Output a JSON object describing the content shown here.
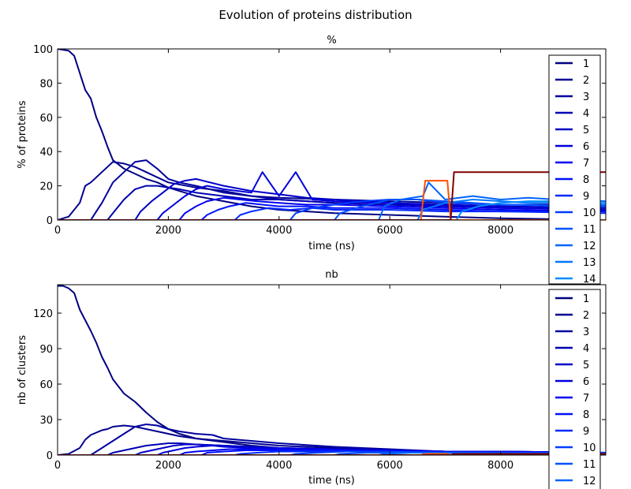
{
  "figure": {
    "title": "Evolution of proteins distribution"
  },
  "colors": {
    "series": [
      "#000080",
      "#00008f",
      "#00009f",
      "#0000b2",
      "#0000c8",
      "#0000dd",
      "#0000f1",
      "#0010ff",
      "#0028ff",
      "#003cff",
      "#0050ff",
      "#0064ff",
      "#0078ff",
      "#008cff",
      "#00a0ff",
      "#00b4ff",
      "#00c8ff",
      "#00dcfe"
    ],
    "orange": "#ff5000",
    "darkred": "#800000"
  },
  "chart_data": [
    {
      "type": "line",
      "title": "%",
      "xlabel": "time (ns)",
      "ylabel": "% of proteins",
      "xlim": [
        0,
        9900
      ],
      "ylim": [
        0,
        100
      ],
      "xticks": [
        "0",
        "2000",
        "4000",
        "6000",
        "8000"
      ],
      "yticks": [
        "0",
        "20",
        "40",
        "60",
        "80",
        "100"
      ],
      "legend": {
        "position": "right",
        "entries": [
          "1",
          "2",
          "3",
          "4",
          "5",
          "6",
          "7",
          "8",
          "9",
          "10",
          "11",
          "12",
          "13",
          "14"
        ]
      },
      "series": [
        {
          "name": "1",
          "x": [
            0,
            200,
            300,
            400,
            500,
            600,
            700,
            800,
            900,
            1000,
            1200,
            1400,
            1600,
            1800,
            2000,
            2500,
            3000,
            3500,
            4000,
            5000,
            6000,
            7000,
            8000,
            9900
          ],
          "values": [
            100,
            99,
            96,
            86,
            76,
            71,
            60,
            52,
            43,
            35,
            30,
            27,
            24,
            22,
            19,
            14,
            11,
            8,
            6,
            4,
            3,
            2,
            1,
            0
          ]
        },
        {
          "name": "2",
          "x": [
            0,
            200,
            400,
            500,
            600,
            700,
            800,
            900,
            1000,
            1200,
            1400,
            1600,
            1800,
            2000,
            2500,
            3000,
            3500,
            4000,
            5000,
            6000,
            7000,
            8000,
            9900
          ],
          "values": [
            0,
            2,
            10,
            20,
            22,
            25,
            28,
            31,
            34,
            33,
            31,
            28,
            25,
            22,
            19,
            17,
            14,
            13,
            12,
            11,
            10,
            9,
            9
          ]
        },
        {
          "name": "3",
          "x": [
            0,
            600,
            700,
            800,
            900,
            1000,
            1200,
            1400,
            1600,
            1800,
            2000,
            2200,
            2500,
            3000,
            3500,
            4000,
            4500,
            5000,
            6000,
            7000,
            8000,
            9900
          ],
          "values": [
            0,
            0,
            5,
            10,
            16,
            22,
            28,
            34,
            35,
            30,
            24,
            22,
            20,
            16,
            14,
            12,
            11,
            10,
            9,
            8,
            7,
            6
          ]
        },
        {
          "name": "4",
          "x": [
            0,
            900,
            1000,
            1100,
            1200,
            1300,
            1400,
            1600,
            1800,
            2000,
            2200,
            2500,
            3000,
            3500,
            4000,
            4500,
            5000,
            6000,
            7000,
            8000,
            9900
          ],
          "values": [
            0,
            0,
            4,
            8,
            12,
            15,
            18,
            20,
            20,
            19,
            18,
            16,
            14,
            12,
            12,
            11,
            10,
            9,
            8,
            8,
            7
          ]
        },
        {
          "name": "5",
          "x": [
            0,
            1400,
            1500,
            1700,
            1900,
            2100,
            2300,
            2500,
            3000,
            3500,
            4000,
            4500,
            5000,
            6000,
            7000,
            8000,
            9900
          ],
          "values": [
            0,
            0,
            5,
            11,
            16,
            21,
            23,
            24,
            20,
            17,
            15,
            13,
            12,
            10,
            9,
            8,
            7
          ]
        },
        {
          "name": "6",
          "x": [
            0,
            1800,
            1900,
            2100,
            2300,
            2500,
            2700,
            3000,
            3500,
            3700,
            4000,
            4300,
            4600,
            5000,
            6000,
            7000,
            8000,
            9900
          ],
          "values": [
            0,
            0,
            4,
            9,
            14,
            18,
            20,
            18,
            16,
            28,
            14,
            28,
            12,
            11,
            10,
            8,
            7,
            6
          ]
        },
        {
          "name": "7",
          "x": [
            0,
            2200,
            2300,
            2500,
            2700,
            3000,
            3300,
            3600,
            4000,
            4500,
            5000,
            6000,
            7000,
            8000,
            9900
          ],
          "values": [
            0,
            0,
            4,
            8,
            11,
            13,
            12,
            11,
            10,
            9,
            9,
            8,
            7,
            6,
            5
          ]
        },
        {
          "name": "8",
          "x": [
            0,
            2600,
            2700,
            2900,
            3100,
            3400,
            3700,
            4000,
            4500,
            5000,
            6000,
            7000,
            8000,
            9900
          ],
          "values": [
            0,
            0,
            3,
            6,
            8,
            10,
            9,
            8,
            8,
            7,
            7,
            6,
            5,
            5
          ]
        },
        {
          "name": "9",
          "x": [
            0,
            3200,
            3300,
            3500,
            3800,
            4200,
            4600,
            5000,
            6000,
            7000,
            8000,
            9900
          ],
          "values": [
            0,
            0,
            3,
            5,
            7,
            6,
            7,
            6,
            6,
            5,
            5,
            4
          ]
        },
        {
          "name": "10",
          "x": [
            0,
            4200,
            4300,
            4600,
            5000,
            5500,
            6000,
            6500,
            7000,
            8000,
            9900
          ],
          "values": [
            0,
            0,
            4,
            7,
            9,
            11,
            12,
            12,
            10,
            9,
            8
          ]
        },
        {
          "name": "11",
          "x": [
            0,
            5000,
            5100,
            5500,
            6000,
            6500,
            7000,
            7500,
            8000,
            8500,
            9000,
            9900
          ],
          "values": [
            0,
            0,
            4,
            8,
            12,
            12,
            11,
            10,
            9,
            9,
            8,
            8
          ]
        },
        {
          "name": "12",
          "x": [
            0,
            5800,
            5900,
            6200,
            6600,
            6700,
            7000,
            7500,
            8000,
            8500,
            9000,
            9900
          ],
          "values": [
            0,
            0,
            8,
            12,
            14,
            22,
            12,
            14,
            12,
            13,
            12,
            11
          ]
        },
        {
          "name": "13",
          "x": [
            0,
            6500,
            6600,
            7000,
            7500,
            8000,
            8500,
            9000,
            9900
          ],
          "values": [
            0,
            0,
            6,
            10,
            12,
            11,
            10,
            10,
            9
          ]
        },
        {
          "name": "14",
          "x": [
            0,
            7200,
            7300,
            7600,
            8000,
            8500,
            9000,
            9500,
            9900
          ],
          "values": [
            0,
            0,
            5,
            8,
            10,
            11,
            11,
            10,
            10
          ]
        },
        {
          "name": "",
          "x": [
            0,
            6560,
            6640,
            7040,
            7100,
            9900
          ],
          "values": [
            0,
            0,
            23,
            23,
            0,
            0
          ]
        },
        {
          "name": "",
          "x": [
            0,
            7100,
            7160,
            9900
          ],
          "values": [
            0,
            0,
            28,
            28
          ]
        }
      ]
    },
    {
      "type": "line",
      "title": "nb",
      "xlabel": "time (ns)",
      "ylabel": "nb of clusters",
      "xlim": [
        0,
        9900
      ],
      "ylim": [
        0,
        144
      ],
      "xticks": [
        "0",
        "2000",
        "4000",
        "6000",
        "8000"
      ],
      "yticks": [
        "0",
        "30",
        "60",
        "90",
        "120"
      ],
      "legend": {
        "position": "right",
        "entries": [
          "1",
          "2",
          "3",
          "4",
          "5",
          "6",
          "7",
          "8",
          "9",
          "10",
          "11",
          "12"
        ]
      },
      "series": [
        {
          "name": "1",
          "x": [
            0,
            100,
            200,
            300,
            400,
            500,
            600,
            700,
            800,
            900,
            1000,
            1200,
            1400,
            1600,
            1800,
            2000,
            2200,
            2500,
            3000,
            3500,
            4000,
            5000,
            6000,
            7000,
            8000,
            9900
          ],
          "values": [
            143,
            143,
            141,
            137,
            123,
            114,
            105,
            95,
            83,
            74,
            64,
            52,
            45,
            36,
            28,
            22,
            18,
            14,
            11,
            8,
            6,
            4,
            3,
            2,
            1,
            1
          ]
        },
        {
          "name": "2",
          "x": [
            0,
            200,
            400,
            500,
            600,
            700,
            800,
            900,
            1000,
            1200,
            1400,
            1600,
            1800,
            2000,
            2200,
            2500,
            3000,
            3500,
            4000,
            5000,
            6000,
            7000,
            8000,
            9900
          ],
          "values": [
            0,
            1,
            6,
            13,
            17,
            19,
            21,
            22,
            24,
            25,
            24,
            22,
            20,
            18,
            16,
            14,
            12,
            10,
            8,
            6,
            4,
            3,
            2,
            2
          ]
        },
        {
          "name": "3",
          "x": [
            0,
            600,
            700,
            800,
            900,
            1000,
            1200,
            1400,
            1600,
            1800,
            2000,
            2200,
            2500,
            2800,
            3000,
            3500,
            4000,
            5000,
            6000,
            7000,
            8000,
            9900
          ],
          "values": [
            0,
            0,
            3,
            6,
            9,
            12,
            18,
            24,
            26,
            25,
            22,
            20,
            18,
            17,
            14,
            12,
            10,
            7,
            5,
            3,
            2,
            2
          ]
        },
        {
          "name": "4",
          "x": [
            0,
            900,
            1000,
            1200,
            1400,
            1600,
            1800,
            2000,
            2200,
            2500,
            3000,
            3500,
            4000,
            5000,
            6000,
            7000,
            8000,
            9900
          ],
          "values": [
            0,
            0,
            2,
            4,
            6,
            8,
            9,
            10,
            10,
            9,
            8,
            7,
            6,
            5,
            4,
            3,
            3,
            2
          ]
        },
        {
          "name": "5",
          "x": [
            0,
            1400,
            1500,
            1700,
            1900,
            2100,
            2300,
            2500,
            3000,
            3500,
            4000,
            5000,
            6000,
            7000,
            8000,
            9900
          ],
          "values": [
            0,
            0,
            2,
            4,
            6,
            8,
            9,
            9,
            8,
            7,
            6,
            5,
            4,
            3,
            3,
            2
          ]
        },
        {
          "name": "6",
          "x": [
            0,
            1800,
            1900,
            2100,
            2300,
            2500,
            2800,
            3000,
            3500,
            4000,
            5000,
            6000,
            7000,
            8000,
            9900
          ],
          "values": [
            0,
            0,
            2,
            4,
            6,
            7,
            8,
            7,
            6,
            6,
            5,
            4,
            3,
            3,
            2
          ]
        },
        {
          "name": "7",
          "x": [
            0,
            2200,
            2300,
            2500,
            2800,
            3100,
            3500,
            4000,
            5000,
            6000,
            7000,
            8000,
            9900
          ],
          "values": [
            0,
            0,
            2,
            3,
            4,
            5,
            5,
            5,
            4,
            4,
            3,
            3,
            2
          ]
        },
        {
          "name": "8",
          "x": [
            0,
            2600,
            2700,
            3000,
            3400,
            4000,
            5000,
            6000,
            7000,
            8000,
            9900
          ],
          "values": [
            0,
            0,
            2,
            3,
            4,
            4,
            4,
            3,
            3,
            2,
            2
          ]
        },
        {
          "name": "9",
          "x": [
            0,
            3200,
            3300,
            3600,
            4000,
            5000,
            6000,
            7000,
            8000,
            9900
          ],
          "values": [
            0,
            0,
            1,
            2,
            3,
            3,
            3,
            2,
            2,
            2
          ]
        },
        {
          "name": "10",
          "x": [
            0,
            4200,
            4300,
            4700,
            5200,
            6000,
            7000,
            8000,
            9900
          ],
          "values": [
            0,
            0,
            1,
            2,
            3,
            3,
            2,
            2,
            2
          ]
        },
        {
          "name": "11",
          "x": [
            0,
            5000,
            5100,
            5600,
            6200,
            7000,
            8000,
            9900
          ],
          "values": [
            0,
            0,
            1,
            2,
            2,
            2,
            2,
            1
          ]
        },
        {
          "name": "12",
          "x": [
            0,
            5800,
            5900,
            6400,
            7000,
            8000,
            9900
          ],
          "values": [
            0,
            0,
            1,
            2,
            2,
            1,
            1
          ]
        },
        {
          "name": "",
          "x": [
            0,
            6560,
            6640,
            7040,
            7100,
            9900
          ],
          "values": [
            0,
            0,
            1,
            1,
            0,
            0
          ]
        },
        {
          "name": "",
          "x": [
            0,
            7100,
            7160,
            9900
          ],
          "values": [
            0,
            0,
            1,
            1
          ]
        }
      ]
    }
  ]
}
